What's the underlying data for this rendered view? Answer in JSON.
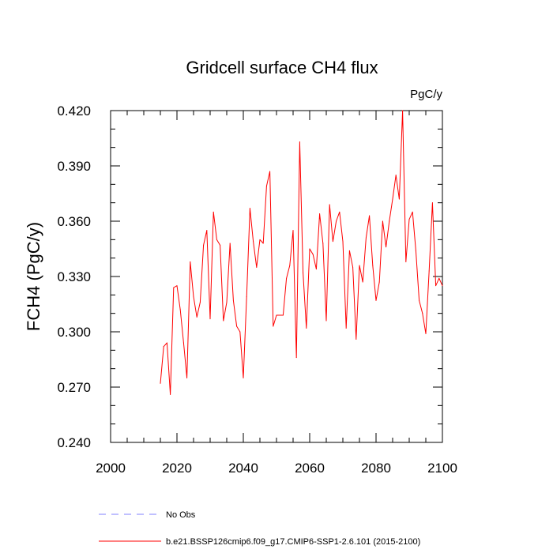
{
  "chart_data": {
    "type": "line",
    "title": "Gridcell surface CH4 flux",
    "units_label": "PgC/y",
    "ylabel": "FCH4  (PgC/y)",
    "xlabel": "",
    "xlim": [
      2000,
      2100
    ],
    "ylim": [
      0.24,
      0.42
    ],
    "x_ticks": [
      2000,
      2020,
      2040,
      2060,
      2080,
      2100
    ],
    "y_ticks": [
      0.24,
      0.27,
      0.3,
      0.33,
      0.36,
      0.39,
      0.42
    ],
    "y_tick_labels": [
      "0.240",
      "0.270",
      "0.300",
      "0.330",
      "0.360",
      "0.390",
      "0.420"
    ],
    "x_tick_labels": [
      "2000",
      "2020",
      "2040",
      "2060",
      "2080",
      "2100"
    ],
    "grid": false,
    "series": [
      {
        "name": "b.e21.BSSP126cmip6.f09_g17.CMIP6-SSP1-2.6.101 (2015-2100)",
        "color": "#ff0000",
        "style": "solid",
        "x": [
          2015,
          2016,
          2017,
          2018,
          2019,
          2020,
          2021,
          2022,
          2023,
          2024,
          2025,
          2026,
          2027,
          2028,
          2029,
          2030,
          2031,
          2032,
          2033,
          2034,
          2035,
          2036,
          2037,
          2038,
          2039,
          2040,
          2041,
          2042,
          2043,
          2044,
          2045,
          2046,
          2047,
          2048,
          2049,
          2050,
          2051,
          2052,
          2053,
          2054,
          2055,
          2056,
          2057,
          2058,
          2059,
          2060,
          2061,
          2062,
          2063,
          2064,
          2065,
          2066,
          2067,
          2068,
          2069,
          2070,
          2071,
          2072,
          2073,
          2074,
          2075,
          2076,
          2077,
          2078,
          2079,
          2080,
          2081,
          2082,
          2083,
          2084,
          2085,
          2086,
          2087,
          2088,
          2089,
          2090,
          2091,
          2092,
          2093,
          2094,
          2095,
          2096,
          2097,
          2098,
          2099,
          2100
        ],
        "values": [
          0.272,
          0.292,
          0.294,
          0.266,
          0.324,
          0.325,
          0.312,
          0.294,
          0.275,
          0.338,
          0.319,
          0.308,
          0.316,
          0.347,
          0.355,
          0.307,
          0.365,
          0.35,
          0.347,
          0.306,
          0.316,
          0.348,
          0.317,
          0.303,
          0.3,
          0.275,
          0.319,
          0.367,
          0.349,
          0.335,
          0.35,
          0.348,
          0.379,
          0.387,
          0.303,
          0.309,
          0.309,
          0.309,
          0.329,
          0.336,
          0.355,
          0.286,
          0.403,
          0.332,
          0.302,
          0.345,
          0.342,
          0.334,
          0.364,
          0.348,
          0.306,
          0.369,
          0.349,
          0.36,
          0.365,
          0.349,
          0.302,
          0.344,
          0.335,
          0.296,
          0.336,
          0.327,
          0.351,
          0.363,
          0.336,
          0.317,
          0.327,
          0.36,
          0.346,
          0.36,
          0.372,
          0.385,
          0.372,
          0.42,
          0.338,
          0.361,
          0.365,
          0.344,
          0.317,
          0.31,
          0.299,
          0.333,
          0.37,
          0.325,
          0.329,
          0.325
        ]
      }
    ],
    "legend": {
      "placement": "bottom",
      "entries": [
        {
          "label": "No Obs",
          "color": "#8080ff",
          "style": "dashed"
        },
        {
          "label": "b.e21.BSSP126cmip6.f09_g17.CMIP6-SSP1-2.6.101 (2015-2100)",
          "color": "#ff0000",
          "style": "solid"
        }
      ]
    }
  }
}
